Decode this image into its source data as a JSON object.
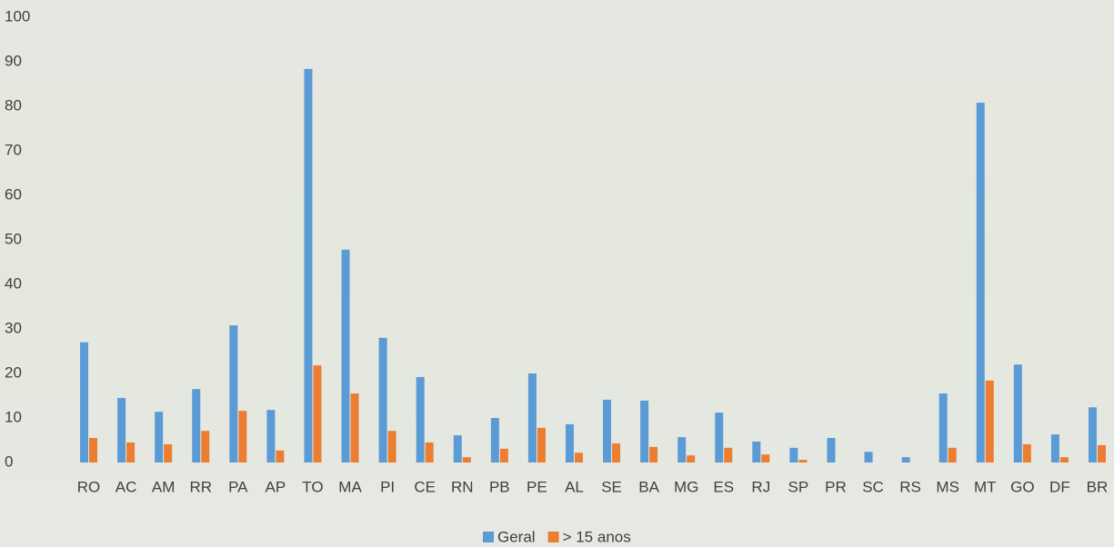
{
  "chart_data": {
    "type": "bar",
    "categories": [
      "RO",
      "AC",
      "AM",
      "RR",
      "PA",
      "AP",
      "TO",
      "MA",
      "PI",
      "CE",
      "RN",
      "PB",
      "PE",
      "AL",
      "SE",
      "BA",
      "MG",
      "ES",
      "RJ",
      "SP",
      "PR",
      "SC",
      "RS",
      "MS",
      "MT",
      "GO",
      "DF",
      "BR"
    ],
    "series": [
      {
        "name": "Geral",
        "color": "#5b9bd5",
        "values": [
          27,
          14.5,
          11.4,
          16.5,
          30.8,
          11.8,
          88.4,
          47.8,
          28,
          19.2,
          6.1,
          10,
          20,
          8.6,
          14.1,
          13.9,
          5.7,
          11.2,
          4.7,
          3.3,
          5.5,
          2.4,
          1.2,
          15.5,
          80.8,
          22,
          6.3,
          12.4
        ]
      },
      {
        "name": "> 15 anos",
        "color": "#ed7d31",
        "values": [
          5.5,
          4.5,
          4.1,
          7.1,
          11.6,
          2.7,
          21.8,
          15.5,
          7.1,
          4.5,
          1.2,
          3.1,
          7.8,
          2.2,
          4.3,
          3.5,
          1.6,
          3.3,
          1.8,
          0.6,
          0,
          0,
          0,
          3.3,
          18.4,
          4.1,
          1.2,
          3.9
        ]
      }
    ],
    "ylim": [
      0,
      100
    ],
    "yticks": [
      0,
      10,
      20,
      30,
      40,
      50,
      60,
      70,
      80,
      90,
      100
    ],
    "grid": false,
    "legend": "bottom"
  }
}
